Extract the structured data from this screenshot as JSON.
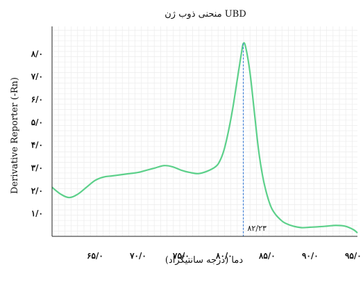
{
  "chart_data": {
    "type": "line",
    "title": "منحنی ذوب ژن UBD",
    "xlabel": "دما (درجه سانتیگراد)",
    "ylabel": "Derivative Reporter (-Rn)",
    "xlim": [
      60,
      95.5
    ],
    "ylim": [
      0,
      9.2
    ],
    "x_ticks": [
      65,
      70,
      75,
      80,
      85,
      90,
      95
    ],
    "x_tick_labels": [
      "۶۵/۰",
      "۷۰/۰",
      "۷۵/۰",
      "۸۰/۰",
      "۸۵/۰",
      "۹۰/۰",
      "۹۵/۰"
    ],
    "y_ticks": [
      1,
      2,
      3,
      4,
      5,
      6,
      7,
      8
    ],
    "y_tick_labels": [
      "۱/۰",
      "۲/۰",
      "۳/۰",
      "۴/۰",
      "۵/۰",
      "۶/۰",
      "۷/۰",
      "۸/۰"
    ],
    "grid": true,
    "series": [
      {
        "color": "#5cd08a",
        "x": [
          60,
          61,
          62,
          63,
          64,
          65,
          66,
          67,
          68,
          69,
          70,
          71,
          72,
          73,
          74,
          75,
          76,
          77,
          78,
          79,
          79.5,
          80,
          80.5,
          81,
          81.5,
          82,
          82.23,
          82.5,
          83,
          83.5,
          84,
          84.5,
          85,
          85.5,
          86,
          86.5,
          87,
          88,
          89,
          90,
          91,
          92,
          93,
          94,
          95,
          95.5
        ],
        "y": [
          2.15,
          1.85,
          1.7,
          1.85,
          2.15,
          2.45,
          2.6,
          2.65,
          2.7,
          2.75,
          2.8,
          2.9,
          3.0,
          3.1,
          3.05,
          2.9,
          2.8,
          2.75,
          2.85,
          3.05,
          3.3,
          3.8,
          4.6,
          5.6,
          6.8,
          8.0,
          8.45,
          8.3,
          7.2,
          5.5,
          3.8,
          2.6,
          1.8,
          1.25,
          0.95,
          0.75,
          0.6,
          0.45,
          0.38,
          0.4,
          0.42,
          0.45,
          0.48,
          0.45,
          0.3,
          0.15
        ]
      }
    ],
    "annotation": {
      "x": 82.23,
      "label": "۸۲/۲۳",
      "color": "#3b7dd8"
    }
  }
}
